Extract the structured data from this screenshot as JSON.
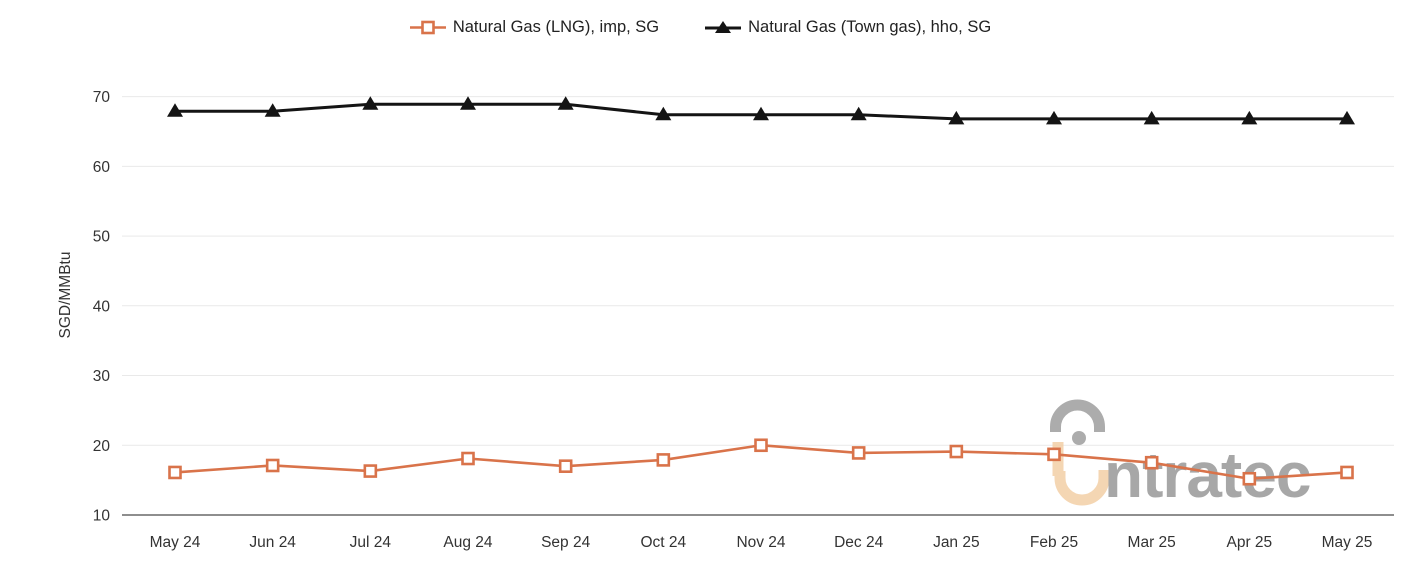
{
  "chart_data": {
    "type": "line",
    "title": "",
    "xlabel": "",
    "ylabel": "SGD/MMBtu",
    "ylim": [
      10,
      72
    ],
    "yticks": [
      10,
      20,
      30,
      40,
      50,
      60,
      70
    ],
    "grid": "horizontal",
    "legend_position": "top-center",
    "categories": [
      "May 24",
      "Jun 24",
      "Jul 24",
      "Aug 24",
      "Sep 24",
      "Oct 24",
      "Nov 24",
      "Dec 24",
      "Jan 25",
      "Feb 25",
      "Mar 25",
      "Apr 25",
      "May 25"
    ],
    "series": [
      {
        "name": "Natural Gas (LNG), imp, SG",
        "color": "#d9734a",
        "marker": "square-open",
        "values": [
          16.1,
          17.1,
          16.3,
          18.1,
          17.0,
          17.9,
          20.0,
          18.9,
          19.1,
          18.7,
          17.5,
          15.2,
          16.1
        ]
      },
      {
        "name": "Natural Gas (Town gas), hho, SG",
        "color": "#141414",
        "marker": "triangle-filled",
        "values": [
          67.9,
          67.9,
          68.9,
          68.9,
          68.9,
          67.4,
          67.4,
          67.4,
          66.8,
          66.8,
          66.8,
          66.8,
          66.8
        ]
      }
    ]
  },
  "legend": {
    "items": [
      {
        "label": "Natural Gas (LNG), imp, SG"
      },
      {
        "label": "Natural Gas (Town gas), hho, SG"
      }
    ]
  },
  "watermark": {
    "text": "ntratec"
  },
  "colors": {
    "lng_orange": "#d9734a",
    "town_gas_black": "#141414",
    "gridline": "#e9e9e9",
    "axis_line": "#4a4a4a",
    "tick_text": "#333333",
    "watermark_gray": "#989898",
    "watermark_peach": "#f3cfa6"
  }
}
